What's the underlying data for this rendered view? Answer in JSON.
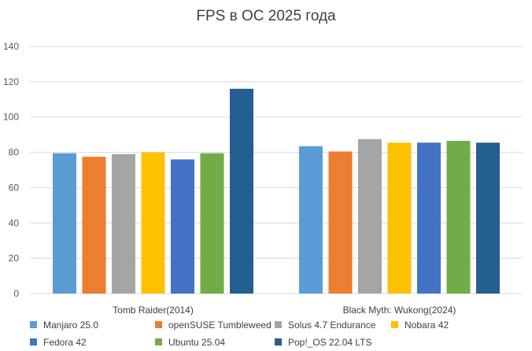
{
  "chart_data": {
    "type": "bar",
    "title": "FPS в ОС 2025 года",
    "categories": [
      "Tomb Raider(2014)",
      "Black Myth: Wukong(2024)"
    ],
    "ylim": [
      0,
      140
    ],
    "yticks": [
      0,
      20,
      40,
      60,
      80,
      100,
      120,
      140
    ],
    "grid": true,
    "legend_position": "bottom",
    "series": [
      {
        "name": "Manjaro 25.0",
        "color": "#5B9BD5",
        "values": [
          79.5,
          83.5
        ]
      },
      {
        "name": "openSUSE  Tumbleweed",
        "color": "#ED7D31",
        "values": [
          77.5,
          80.5
        ]
      },
      {
        "name": "Solus 4.7 Endurance",
        "color": "#A5A5A5",
        "values": [
          79,
          87.5
        ]
      },
      {
        "name": "Nobara 42",
        "color": "#FFC000",
        "values": [
          80,
          85.5
        ]
      },
      {
        "name": "Fedora 42",
        "color": "#4472C4",
        "values": [
          76,
          85.5
        ]
      },
      {
        "name": "Ubuntu 25.04",
        "color": "#70AD47",
        "values": [
          79.5,
          86.5
        ]
      },
      {
        "name": "Pop!_OS 22.04 LTS",
        "color": "#255E91",
        "values": [
          116,
          85.5
        ]
      }
    ]
  }
}
